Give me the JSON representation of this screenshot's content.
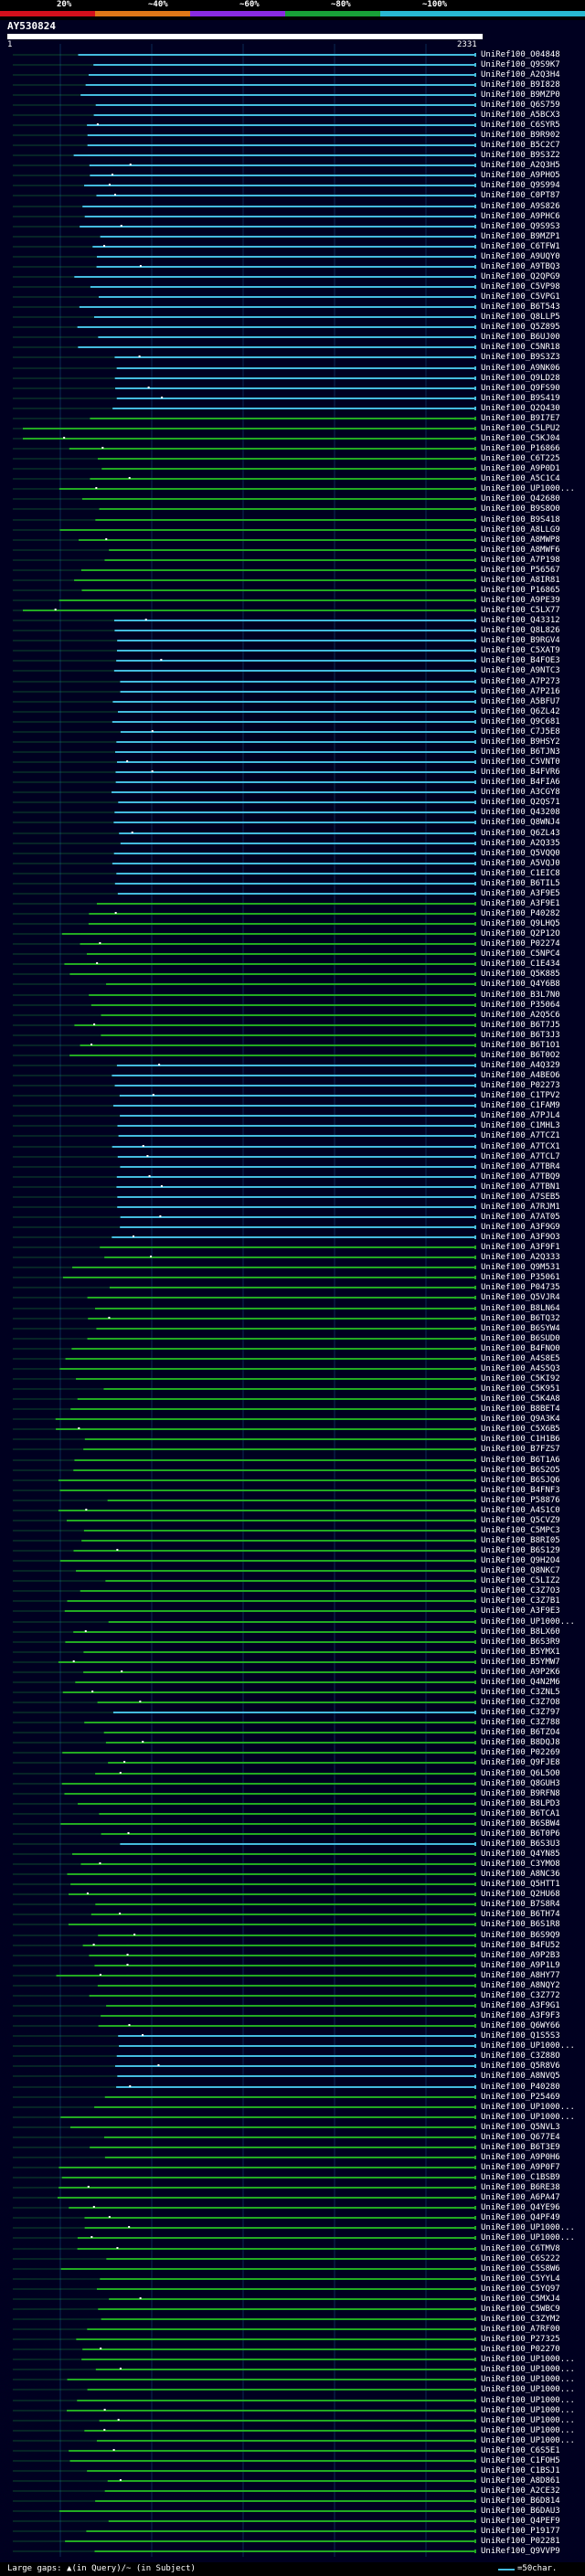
{
  "header": {
    "scale_labels": [
      "20%",
      "~40%",
      "~60%",
      "~80%",
      "~100%"
    ],
    "band_colors": [
      "#d4101c",
      "#e07818",
      "#8a2be2",
      "#18a038",
      "#28b8d0"
    ],
    "query_id": "AY530824",
    "query_start": "1",
    "query_end": "2331"
  },
  "colors": {
    "cyan_hit": "#44bbdd",
    "green_hit": "#22aa22",
    "gap_green": "#22cc44",
    "grid": "#0a2a55"
  },
  "hits": [
    "UniRef100_O04848",
    "UniRef100_Q9S9K7",
    "UniRef100_A2Q3H4",
    "UniRef100_B9I828",
    "UniRef100_B9MZP0",
    "UniRef100_Q6S759",
    "UniRef100_A5BCX3",
    "UniRef100_C6SYR5",
    "UniRef100_B9R902",
    "UniRef100_B5C2C7",
    "UniRef100_B9S3Z2",
    "UniRef100_A2Q3H5",
    "UniRef100_A9PHO5",
    "UniRef100_Q9S994",
    "UniRef100_C0PT87",
    "UniRef100_A9S826",
    "UniRef100_A9PHC6",
    "UniRef100_Q9S9S3",
    "UniRef100_B9MZP1",
    "UniRef100_C6TFW1",
    "UniRef100_A9UQY0",
    "UniRef100_A9TBQ3",
    "UniRef100_Q2QPG9",
    "UniRef100_C5VP98",
    "UniRef100_C5VPG1",
    "UniRef100_B6T543",
    "UniRef100_Q8LLP5",
    "UniRef100_Q5Z895",
    "UniRef100_B6UJ00",
    "UniRef100_C5NR18",
    "UniRef100_B9S3Z3",
    "UniRef100_A9NK06",
    "UniRef100_Q9LD28",
    "UniRef100_Q9FS90",
    "UniRef100_B9S419",
    "UniRef100_Q2Q430",
    "UniRef100_B9I7E7",
    "UniRef100_C5LPU2",
    "UniRef100_C5KJ04",
    "UniRef100_P16866",
    "UniRef100_C6T225",
    "UniRef100_A9P0D1",
    "UniRef100_A5C1C4",
    "UniRef100_UP1000...",
    "UniRef100_Q42680",
    "UniRef100_B9S8O0",
    "UniRef100_B9S418",
    "UniRef100_A8LLG9",
    "UniRef100_A8MWP8",
    "UniRef100_A8MWF6",
    "UniRef100_A7P198",
    "UniRef100_P56567",
    "UniRef100_A8IR81",
    "UniRef100_P16865",
    "UniRef100_A9PE39",
    "UniRef100_C5LX77",
    "UniRef100_Q43312",
    "UniRef100_Q8L826",
    "UniRef100_B9RGV4",
    "UniRef100_C5XAT9",
    "UniRef100_B4FOE3",
    "UniRef100_A9NTC3",
    "UniRef100_A7P273",
    "UniRef100_A7P216",
    "UniRef100_A5BFU7",
    "UniRef100_Q6ZL42",
    "UniRef100_Q9C681",
    "UniRef100_C7J5E8",
    "UniRef100_B9HSY2",
    "UniRef100_B6TJN3",
    "UniRef100_C5VNT0",
    "UniRef100_B4FVR6",
    "UniRef100_B4FIA6",
    "UniRef100_A3CGY8",
    "UniRef100_Q2QS71",
    "UniRef100_Q43208",
    "UniRef100_Q8WNJ4",
    "UniRef100_Q6ZL43",
    "UniRef100_A2Q335",
    "UniRef100_Q5VQQ0",
    "UniRef100_A5VQJ0",
    "UniRef100_C1EIC8",
    "UniRef100_B6TIL5",
    "UniRef100_A3F9E5",
    "UniRef100_A3F9E1",
    "UniRef100_P40282",
    "UniRef100_Q9LHQ5",
    "UniRef100_Q2P12O",
    "UniRef100_P02274",
    "UniRef100_C5NPC4",
    "UniRef100_C1E434",
    "UniRef100_Q5K885",
    "UniRef100_Q4Y6B8",
    "UniRef100_B3L7N0",
    "UniRef100_P35064",
    "UniRef100_A2Q5C6",
    "UniRef100_B6T7J5",
    "UniRef100_B6T3J3",
    "UniRef100_B6T1O1",
    "UniRef100_B6T0O2",
    "UniRef100_A4Q329",
    "UniRef100_A4BEO6",
    "UniRef100_P02273",
    "UniRef100_C1TPV2",
    "UniRef100_C1FAM9",
    "UniRef100_A7PJL4",
    "UniRef100_C1MHL3",
    "UniRef100_A7TCZ1",
    "UniRef100_A7TCX1",
    "UniRef100_A7TCL7",
    "UniRef100_A7TBR4",
    "UniRef100_A7TBQ9",
    "UniRef100_A7TBN1",
    "UniRef100_A7SEB5",
    "UniRef100_A7RJM1",
    "UniRef100_A7AT05",
    "UniRef100_A3F9G9",
    "UniRef100_A3F9O3",
    "UniRef100_A3F9F1",
    "UniRef100_A2Q333",
    "UniRef100_Q9M531",
    "UniRef100_P35061",
    "UniRef100_P04735",
    "UniRef100_Q5VJR4",
    "UniRef100_B8LN64",
    "UniRef100_B6TQ32",
    "UniRef100_B6SYW4",
    "UniRef100_B6SUD0",
    "UniRef100_B4FNO0",
    "UniRef100_A4S8E5",
    "UniRef100_A4S5Q3",
    "UniRef100_C5KI92",
    "UniRef100_C5K951",
    "UniRef100_C5K4A8",
    "UniRef100_B8BET4",
    "UniRef100_Q9A3K4",
    "UniRef100_C5X6B5",
    "UniRef100_C1H1B6",
    "UniRef100_B7FZS7",
    "UniRef100_B6T1A6",
    "UniRef100_B6S2O5",
    "UniRef100_B6SJQ6",
    "UniRef100_B4FNF3",
    "UniRef100_P58876",
    "UniRef100_A4S1C0",
    "UniRef100_Q5CVZ9",
    "UniRef100_C5MPC3",
    "UniRef100_B8RI05",
    "UniRef100_B6S129",
    "UniRef100_Q9H2O4",
    "UniRef100_Q8NKC7",
    "UniRef100_C5LIZ2",
    "UniRef100_C3Z7O3",
    "UniRef100_C3Z7B1",
    "UniRef100_A3F9E3",
    "UniRef100_UP1000...",
    "UniRef100_B8LX60",
    "UniRef100_B6S3R9",
    "UniRef100_B5YMX1",
    "UniRef100_B5YMW7",
    "UniRef100_A9P2K6",
    "UniRef100_Q4N2M6",
    "UniRef100_C3ZNL5",
    "UniRef100_C3Z7O8",
    "UniRef100_C3Z797",
    "UniRef100_C3Z788",
    "UniRef100_B6TZO4",
    "UniRef100_B8DQJ8",
    "UniRef100_P02269",
    "UniRef100_Q9FJE8",
    "UniRef100_Q6L5O0",
    "UniRef100_Q8GUH3",
    "UniRef100_B9RFN8",
    "UniRef100_B8LPD3",
    "UniRef100_B6TCA1",
    "UniRef100_B6SBW4",
    "UniRef100_B6T0P6",
    "UniRef100_B6S3U3",
    "UniRef100_Q4YN85",
    "UniRef100_C3YMO8",
    "UniRef100_A8NC36",
    "UniRef100_Q5HTT1",
    "UniRef100_Q2HU68",
    "UniRef100_B7S8R4",
    "UniRef100_B6TH74",
    "UniRef100_B6S1R8",
    "UniRef100_B6S9Q9",
    "UniRef100_B4FU52",
    "UniRef100_A9P2B3",
    "UniRef100_A9P1L9",
    "UniRef100_A8HY77",
    "UniRef100_A8NQY2",
    "UniRef100_C3Z772",
    "UniRef100_A3F9G1",
    "UniRef100_A3F9F3",
    "UniRef100_Q6WY66",
    "UniRef100_Q1S5S3",
    "UniRef100_UP1000...",
    "UniRef100_C3Z88O",
    "UniRef100_Q5R8V6",
    "UniRef100_A8NVQ5",
    "UniRef100_P40280",
    "UniRef100_P25469",
    "UniRef100_UP1000...",
    "UniRef100_UP1000...",
    "UniRef100_Q5NVL3",
    "UniRef100_Q677E4",
    "UniRef100_B6T3E9",
    "UniRef100_A9P0H6",
    "UniRef100_A9P0F7",
    "UniRef100_C1BSB9",
    "UniRef100_B6RE38",
    "UniRef100_A6PA47",
    "UniRef100_Q4YE96",
    "UniRef100_Q4PF49",
    "UniRef100_UP1000...",
    "UniRef100_UP1000...",
    "UniRef100_C6TMV8",
    "UniRef100_C6S222",
    "UniRef100_C5S8W6",
    "UniRef100_C5YYL4",
    "UniRef100_C5YQ97",
    "UniRef100_C5MXJ4",
    "UniRef100_C5WBC9",
    "UniRef100_C3ZYM2",
    "UniRef100_A7RF00",
    "UniRef100_P27325",
    "UniRef100_P02270",
    "UniRef100_UP1000...",
    "UniRef100_UP1000...",
    "UniRef100_UP1000...",
    "UniRef100_UP1000...",
    "UniRef100_UP1000...",
    "UniRef100_UP1000...",
    "UniRef100_UP1000...",
    "UniRef100_UP1000...",
    "UniRef100_UP1000...",
    "UniRef100_C6S5E1",
    "UniRef100_C1FOH5",
    "UniRef100_C1BSJ1",
    "UniRef100_A8D861",
    "UniRef100_A2CE32",
    "UniRef100_B6D814",
    "UniRef100_B6DAU3",
    "UniRef100_Q4PEF9",
    "UniRef100_P19177",
    "UniRef100_P02281",
    "UniRef100_Q9VVP9"
  ],
  "legend": {
    "left": "Large gaps: ▲(in Query)/~ (in Subject)",
    "right": "=50char."
  }
}
